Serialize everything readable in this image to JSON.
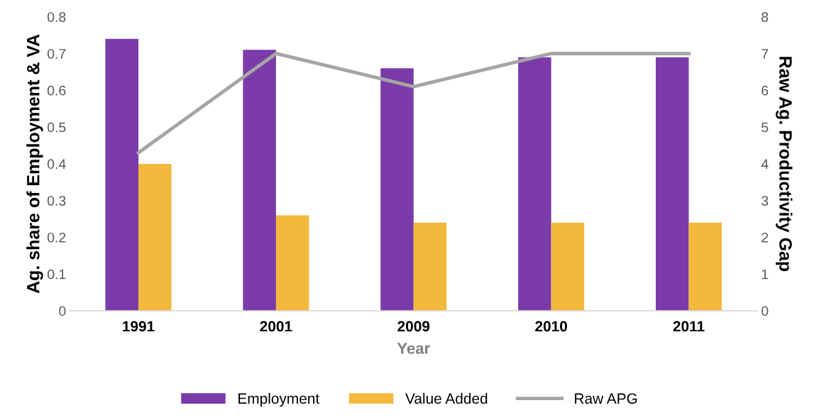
{
  "chart_data": {
    "type": "bar",
    "xlabel": "Year",
    "ylabel": "Ag. share of Employment & VA",
    "y2label": "Raw Ag. Productivity Gap",
    "categories": [
      "1991",
      "2001",
      "2009",
      "2010",
      "2011"
    ],
    "series": [
      {
        "name": "Employment",
        "color": "#7a3aa8",
        "values": [
          0.74,
          0.71,
          0.66,
          0.69,
          0.69
        ]
      },
      {
        "name": "Value Added",
        "color": "#f2b93c",
        "values": [
          0.4,
          0.26,
          0.24,
          0.24,
          0.24
        ]
      },
      {
        "name": "Raw APG",
        "type": "line",
        "axis": "y2",
        "color": "#a5a5a5",
        "values": [
          4.3,
          7.0,
          6.1,
          7.0,
          7.0
        ]
      }
    ],
    "ylim": [
      0,
      0.8
    ],
    "yticks": [
      {
        "value": 0,
        "label": "0"
      },
      0.1,
      0.2,
      0.3,
      0.4,
      0.5,
      0.6,
      0.7,
      0.8
    ],
    "y2lim": [
      0,
      8
    ],
    "y2ticks": [
      0,
      1,
      2,
      3,
      4,
      5,
      6,
      7,
      8
    ],
    "grid": false,
    "legend": "bottom",
    "marker": "none",
    "line_style": "solid"
  }
}
